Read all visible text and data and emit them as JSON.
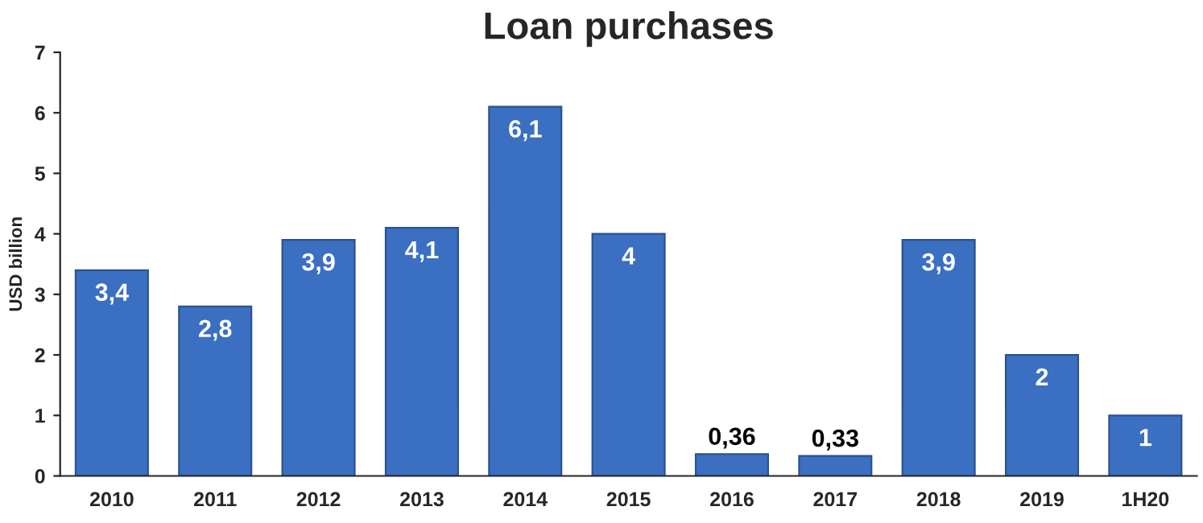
{
  "chart_data": {
    "type": "bar",
    "title": "Loan purchases",
    "ylabel": "USD billion",
    "categories": [
      "2010",
      "2011",
      "2012",
      "2013",
      "2014",
      "2015",
      "2016",
      "2017",
      "2018",
      "2019",
      "1H20"
    ],
    "values": [
      3.4,
      2.8,
      3.9,
      4.1,
      6.1,
      4,
      0.36,
      0.33,
      3.9,
      2,
      1
    ],
    "value_labels": [
      "3,4",
      "2,8",
      "3,9",
      "4,1",
      "6,1",
      "4",
      "0,36",
      "0,33",
      "3,9",
      "2",
      "1"
    ],
    "color": "#3b6fc2",
    "ylim": [
      0,
      7
    ],
    "yticks": [
      0,
      1,
      2,
      3,
      4,
      5,
      6,
      7
    ],
    "grid": false,
    "legend": false
  }
}
